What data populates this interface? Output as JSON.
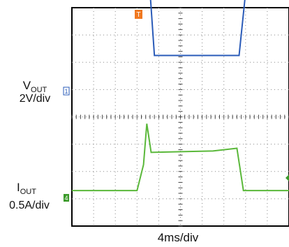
{
  "chart_data": {
    "type": "line",
    "time_per_div": "4ms/div",
    "x_divisions": 10,
    "y_divisions": 8,
    "trigger_marker": "T",
    "x_unit": "div",
    "series": [
      {
        "name_main": "V",
        "name_sub": "OUT",
        "scale": "2V/div",
        "channel": "1",
        "color": "#2a5bb8",
        "x": [
          0,
          3.6,
          3.8,
          7.7,
          8.0,
          10.0
        ],
        "y": [
          7.25,
          7.25,
          4.95,
          4.95,
          7.25,
          7.25
        ]
      },
      {
        "name_main": "I",
        "name_sub": "OUT",
        "scale": "0.5A/div",
        "channel": "4",
        "color": "#5ab83a",
        "x": [
          0,
          3.0,
          3.3,
          3.45,
          3.65,
          6.5,
          7.6,
          7.9,
          10.0
        ],
        "y": [
          0.0,
          0.0,
          0.95,
          2.45,
          1.4,
          1.45,
          1.55,
          0.0,
          0.0
        ]
      }
    ]
  }
}
